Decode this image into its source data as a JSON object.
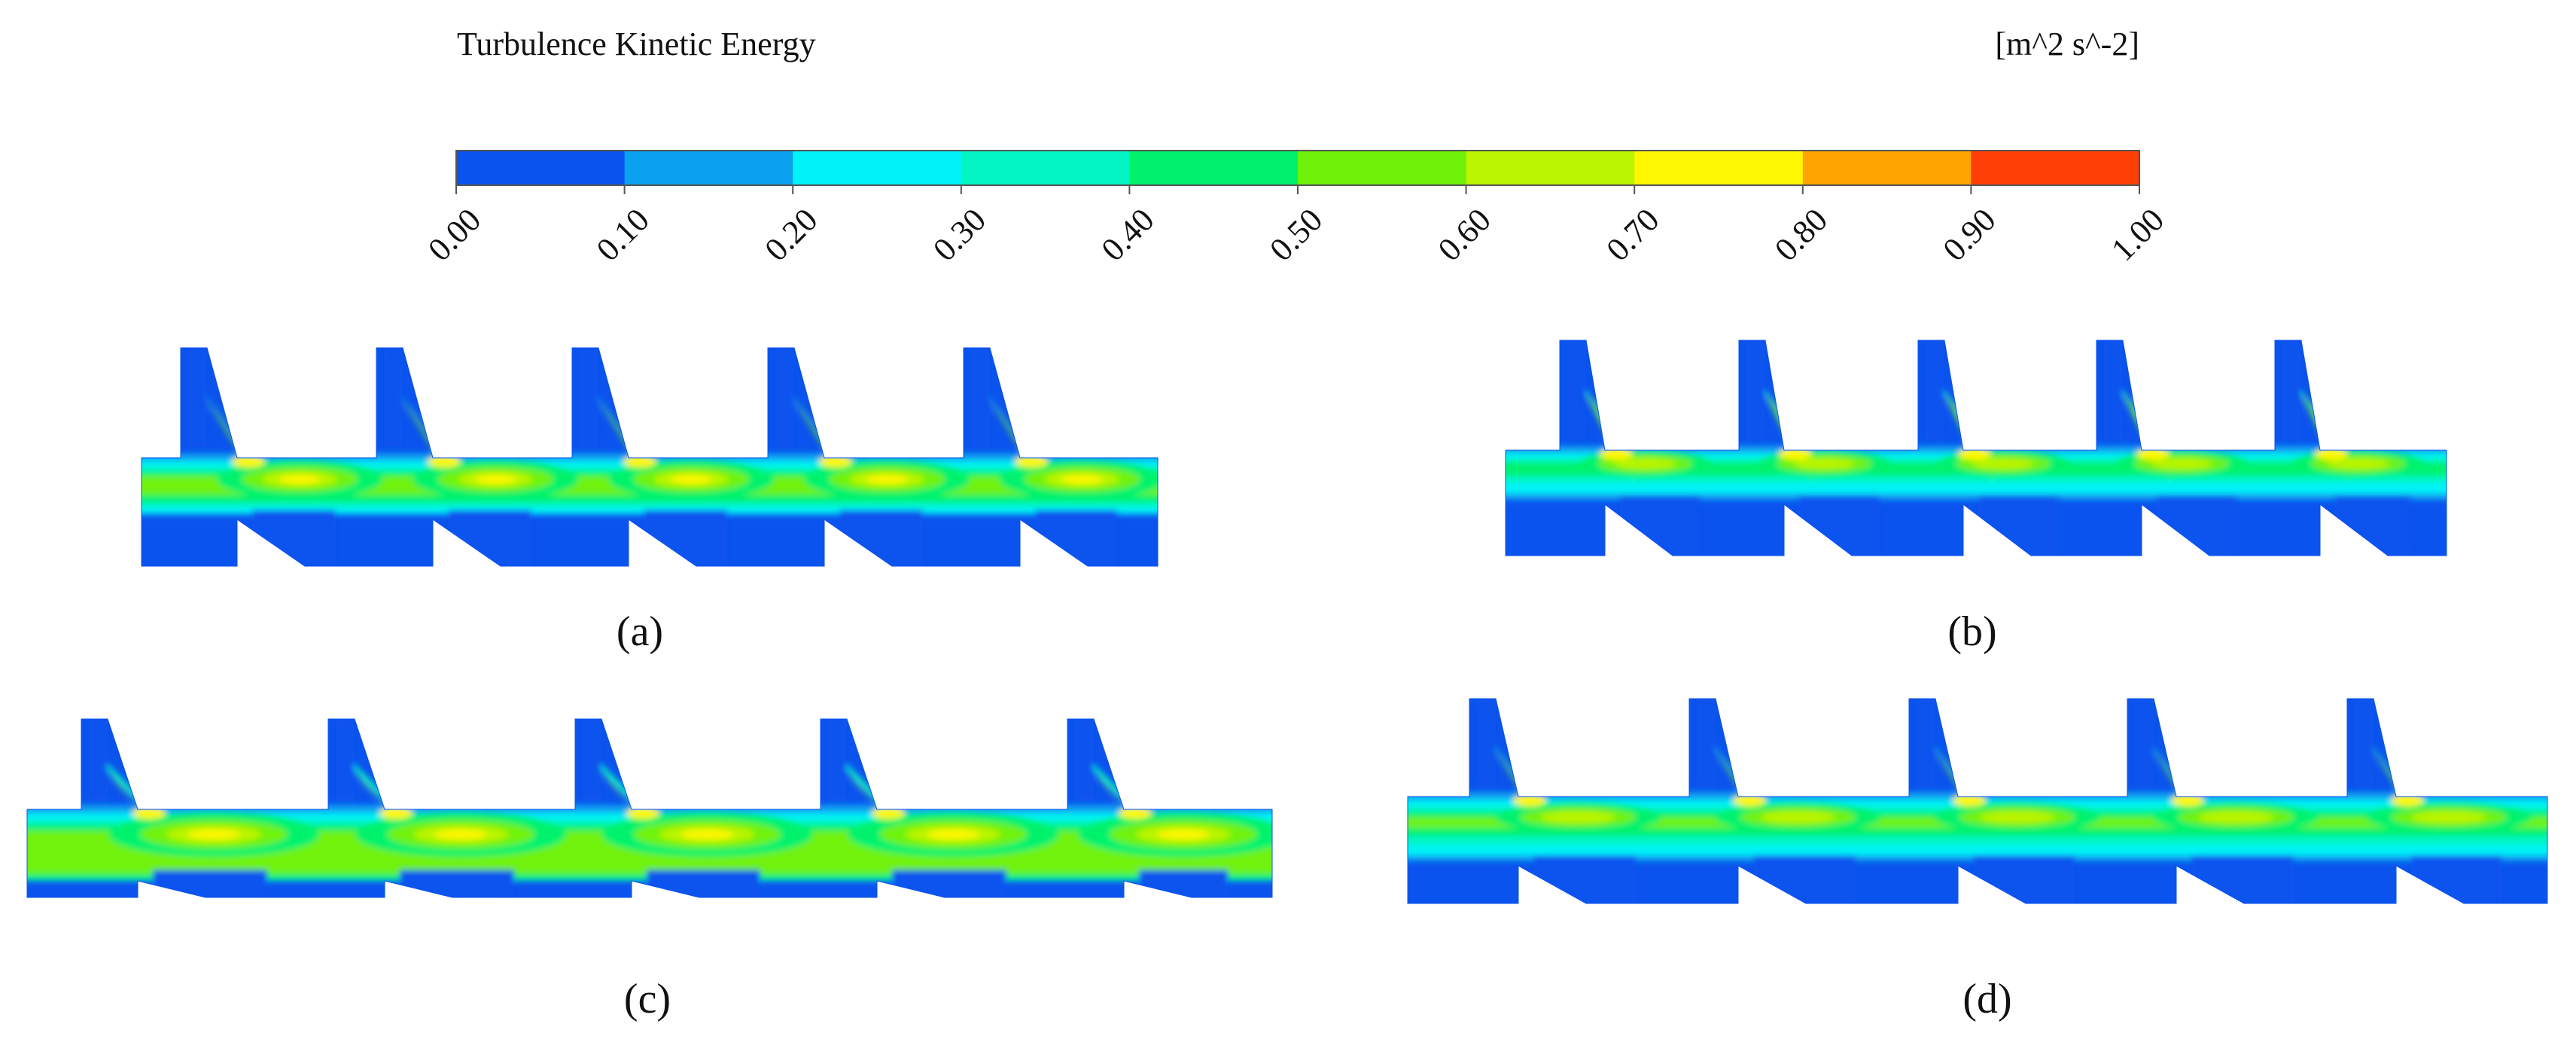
{
  "legend": {
    "title": "Turbulence Kinetic Energy",
    "unit": "[m^2 s^-2]",
    "ticks": [
      "0.00",
      "0.10",
      "0.20",
      "0.30",
      "0.40",
      "0.50",
      "0.60",
      "0.70",
      "0.80",
      "0.90",
      "1.00"
    ],
    "colors": [
      "#0b53ee",
      "#0ba0f0",
      "#00f3f6",
      "#03f5c3",
      "#00f26d",
      "#6ff20a",
      "#baf400",
      "#fdf703",
      "#fea502",
      "#ff3f06"
    ]
  },
  "panels": [
    {
      "label": "(a)",
      "variant": "a"
    },
    {
      "label": "(b)",
      "variant": "b"
    },
    {
      "label": "(c)",
      "variant": "c"
    },
    {
      "label": "(d)",
      "variant": "d"
    }
  ]
}
